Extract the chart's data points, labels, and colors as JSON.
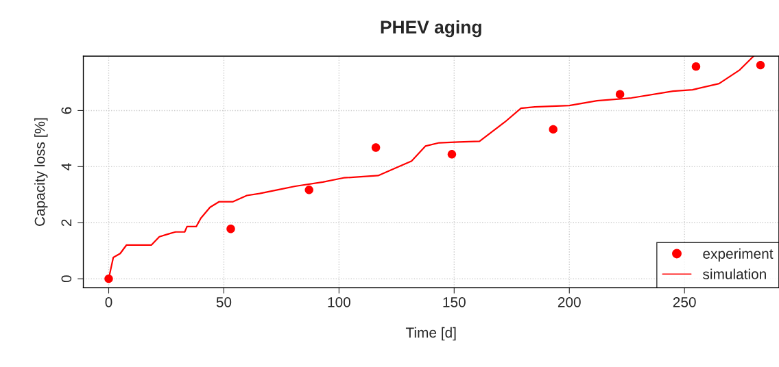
{
  "chart_data": {
    "type": "scatter",
    "title": "PHEV aging",
    "xlabel": "Time [d]",
    "ylabel": "Capacity loss [%]",
    "xlim": [
      -11,
      291
    ],
    "ylim": [
      -0.32,
      7.94
    ],
    "xticks": [
      0,
      50,
      100,
      150,
      200,
      250
    ],
    "yticks": [
      0,
      2,
      4,
      6
    ],
    "grid": true,
    "legend": "bottom right",
    "series": [
      {
        "name": "experiment",
        "marker": "circle",
        "color": "#ff0000",
        "x": [
          0,
          53,
          87,
          116,
          149,
          193,
          222,
          255,
          283
        ],
        "values": [
          0,
          1.78,
          3.17,
          4.68,
          4.44,
          5.33,
          6.58,
          7.57,
          7.62
        ]
      },
      {
        "name": "simulation",
        "type": "line",
        "color": "#ff0000",
        "line_style": "solid",
        "x": [
          0,
          2,
          5,
          7.7,
          18.5,
          22,
          26,
          29,
          33,
          34,
          38,
          40,
          44,
          48,
          54,
          60,
          65.5,
          75,
          81,
          93,
          102,
          117,
          126,
          131.5,
          137.5,
          143.5,
          152,
          161,
          172,
          179,
          185,
          200,
          212,
          227,
          245,
          253.5,
          265,
          274,
          280
        ],
        "values": [
          0,
          0.76,
          0.9,
          1.2,
          1.2,
          1.5,
          1.6,
          1.67,
          1.67,
          1.86,
          1.86,
          2.16,
          2.55,
          2.75,
          2.75,
          2.97,
          3.04,
          3.2,
          3.3,
          3.45,
          3.6,
          3.68,
          4.0,
          4.2,
          4.73,
          4.85,
          4.88,
          4.9,
          5.59,
          6.08,
          6.13,
          6.18,
          6.35,
          6.45,
          6.69,
          6.74,
          6.96,
          7.45,
          7.94
        ]
      }
    ]
  }
}
